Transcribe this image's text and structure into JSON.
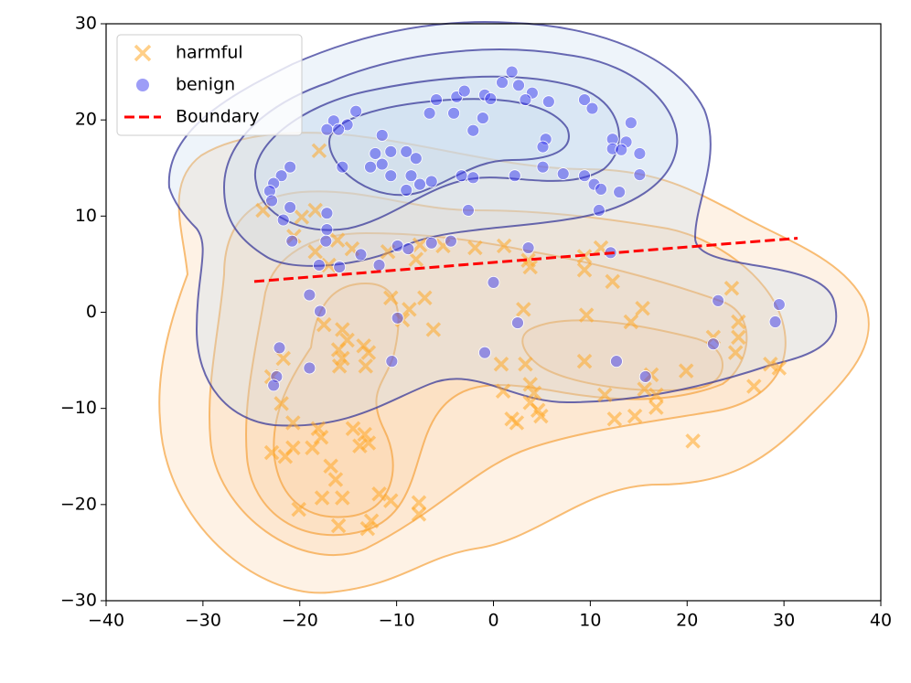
{
  "chart_data": {
    "type": "scatter",
    "xlim": [
      -40,
      40
    ],
    "ylim": [
      -30,
      30
    ],
    "xticks": [
      {
        "value": -40,
        "label": "−40"
      },
      {
        "value": -30,
        "label": "−30"
      },
      {
        "value": -20,
        "label": "−20"
      },
      {
        "value": -10,
        "label": "−10"
      },
      0,
      10,
      20,
      30,
      40
    ],
    "yticks": [
      {
        "value": -30,
        "label": "−30"
      },
      {
        "value": -20,
        "label": "−20"
      },
      {
        "value": -10,
        "label": "−10"
      },
      0,
      10,
      20,
      30
    ],
    "legend": "upper left",
    "series": [
      {
        "name": "harmful",
        "color": "#ffa726",
        "marker": "x",
        "x": [
          -18,
          -23.8,
          -19.8,
          -18.4,
          -20.6,
          -16.1,
          -14.6,
          -18.4,
          -17,
          -10.9,
          -8,
          -7.6,
          -5.2,
          -1.9,
          1.1,
          3.6,
          3.8,
          9.4,
          9.4,
          12.3,
          11.1,
          -10.6,
          -8.7,
          -9.4,
          -7.1,
          -6.2,
          3.1,
          9.6,
          14.2,
          15.4,
          9.4,
          0.8,
          3.3,
          1,
          3.8,
          4.2,
          3.8,
          4.6,
          2.4,
          1.9,
          4.9,
          11.5,
          12.5,
          14.6,
          15.6,
          16.8,
          16.8,
          16.3,
          19.9,
          20.6,
          22.7,
          24.6,
          25.3,
          25.3,
          25,
          26.9,
          28.6,
          29.5,
          -17.5,
          -15.6,
          -15.1,
          -16,
          -13.4,
          -12.9,
          -15.6,
          -13.2,
          -15.9,
          -21.7,
          -22.9,
          -21.9,
          -20.7,
          -18.1,
          -17.8,
          -14.5,
          -13.3,
          -13.8,
          -12.9,
          -20.7,
          -22.9,
          -21.5,
          -18.7,
          -16.8,
          -16.3,
          -17.7,
          -15.6,
          -20.1,
          -16,
          -12.6,
          -13,
          -11.8,
          -10.6,
          -7.7,
          -7.7
        ],
        "values": [
          16.8,
          10.6,
          9.9,
          10.6,
          7.9,
          7.5,
          6.6,
          6.3,
          4.9,
          6.3,
          5.5,
          7,
          6.9,
          6.7,
          6.9,
          5.4,
          4.7,
          5.8,
          4.4,
          3.2,
          6.7,
          1.5,
          0.3,
          -0.8,
          1.5,
          -1.8,
          0.3,
          -0.3,
          -1,
          0.4,
          -5.1,
          -5.4,
          -5.4,
          -8.2,
          -7.5,
          -8.4,
          -9.4,
          -10.2,
          -11.5,
          -11.1,
          -10.8,
          -8.6,
          -11.1,
          -10.8,
          -8,
          -8.6,
          -9.9,
          -6.5,
          -6.1,
          -13.4,
          -2.6,
          2.5,
          -1,
          -2.6,
          -4.2,
          -7.7,
          -5.4,
          -5.8,
          -1.3,
          -1.8,
          -2.9,
          -3.9,
          -3.5,
          -4.2,
          -4.8,
          -5.6,
          -5.6,
          -4.8,
          -6.7,
          -9.5,
          -11.5,
          -12.1,
          -13,
          -12.1,
          -12.7,
          -13.9,
          -13.6,
          -14.1,
          -14.6,
          -15,
          -14.1,
          -16,
          -17.4,
          -19.3,
          -19.3,
          -20.5,
          -22.2,
          -21.7,
          -22.5,
          -18.9,
          -19.6,
          -19.8,
          -21
        ]
      },
      {
        "name": "benign",
        "color": "#3b3bf0",
        "marker": "o",
        "x": [
          1.9,
          0.9,
          2.6,
          4,
          -0.9,
          -3.8,
          -5.9,
          -3,
          -0.3,
          3.3,
          5.7,
          9.4,
          10.2,
          -6.6,
          -4.1,
          -1.1,
          -14.2,
          -16.5,
          -15.1,
          -17.2,
          -16,
          -11.5,
          -2.1,
          5.4,
          5.1,
          14.2,
          12.3,
          13.7,
          12.3,
          13.2,
          15.1,
          -12.2,
          -10.6,
          -9,
          -12.7,
          -11.5,
          -8,
          -15.6,
          -10.6,
          -8.5,
          -7.6,
          -6.4,
          -9,
          -3.3,
          -2.1,
          2.2,
          5.1,
          7.2,
          9.4,
          10.4,
          11.1,
          13,
          15.1,
          10.9,
          -2.6,
          -21,
          -21.9,
          -22.7,
          -23.1,
          -22.9,
          -21,
          -21.7,
          -17.2,
          -17.2,
          -17.3,
          -20.8,
          -13.7,
          -18,
          -15.9,
          -11.8,
          -9.9,
          -8.8,
          -6.4,
          -4.4,
          3.6,
          12.1,
          0,
          -19,
          -17.9,
          -9.9,
          2.5,
          -0.9,
          -10.5,
          -19,
          -22.1,
          -22.4,
          -22.7,
          12.7,
          15.7,
          22.7,
          23.2,
          29.5,
          29.1
        ],
        "values": [
          25,
          23.9,
          23.6,
          22.8,
          22.6,
          22.4,
          22.1,
          23,
          22.2,
          22.1,
          21.9,
          22.1,
          21.2,
          20.7,
          20.7,
          20.2,
          20.9,
          19.9,
          19.5,
          19,
          19,
          18.4,
          18.9,
          18,
          17.2,
          19.7,
          18,
          17.7,
          17,
          16.9,
          16.5,
          16.5,
          16.7,
          16.7,
          15.1,
          15.4,
          16,
          15.1,
          14.2,
          14.2,
          13.3,
          13.6,
          12.7,
          14.2,
          14,
          14.2,
          15.1,
          14.4,
          14.2,
          13.3,
          12.8,
          12.5,
          14.3,
          10.6,
          10.6,
          15.1,
          14.2,
          13.4,
          12.6,
          11.6,
          10.9,
          9.6,
          10.3,
          8.6,
          7.4,
          7.4,
          6,
          4.9,
          4.7,
          4.9,
          6.9,
          6.6,
          7.2,
          7.4,
          6.7,
          6.2,
          3.1,
          1.8,
          0.1,
          -0.6,
          -1.1,
          -4.2,
          -5.1,
          -5.8,
          -3.7,
          -6.7,
          -7.6,
          -5.1,
          -6.7,
          -3.3,
          1.2,
          0.8,
          -1
        ]
      },
      {
        "name": "Boundary",
        "color": "#ff0000",
        "marker": "dashed-line",
        "x": [
          -24.7,
          31.4
        ],
        "values": [
          3.2,
          7.7
        ]
      }
    ]
  }
}
